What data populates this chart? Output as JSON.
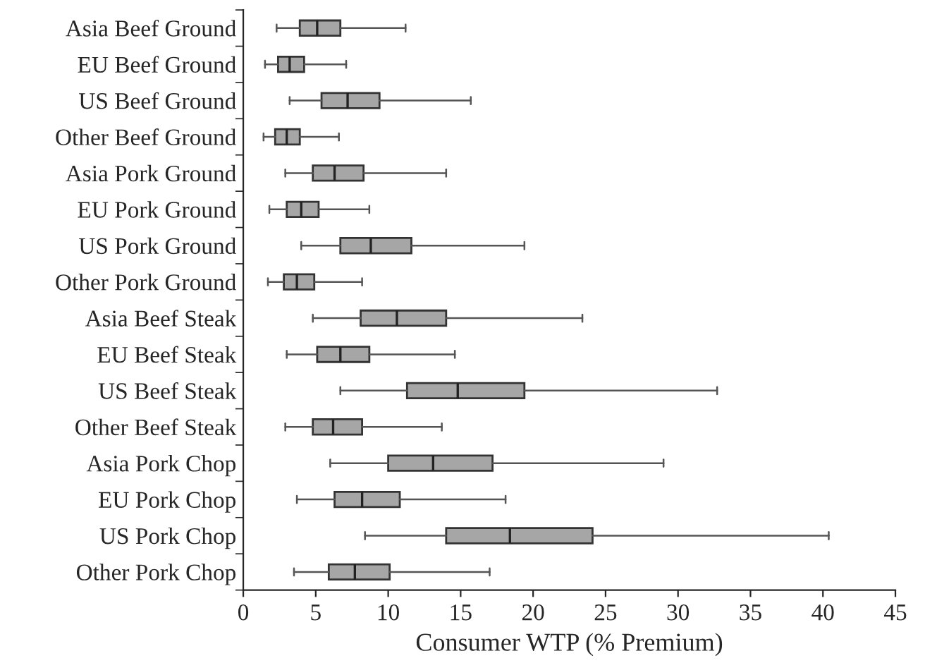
{
  "chart_data": {
    "type": "box",
    "orientation": "horizontal",
    "xlabel": "Consumer WTP (% Premium)",
    "categories": [
      "Asia Beef Ground",
      "EU Beef Ground",
      "US Beef Ground",
      "Other Beef Ground",
      "Asia Pork Ground",
      "EU Pork Ground",
      "US Pork Ground",
      "Other Pork Ground",
      "Asia Beef Steak",
      "EU Beef Steak",
      "US Beef Steak",
      "Other Beef Steak",
      "Asia Pork Chop",
      "EU Pork Chop",
      "US Pork Chop",
      "Other Pork Chop"
    ],
    "color": "#a6a6a6",
    "boxes": [
      {
        "low": 2.3,
        "q1": 3.9,
        "median": 5.1,
        "q3": 6.7,
        "high": 11.2
      },
      {
        "low": 1.5,
        "q1": 2.4,
        "median": 3.2,
        "q3": 4.2,
        "high": 7.1
      },
      {
        "low": 3.2,
        "q1": 5.4,
        "median": 7.2,
        "q3": 9.4,
        "high": 15.7
      },
      {
        "low": 1.4,
        "q1": 2.2,
        "median": 3.0,
        "q3": 3.9,
        "high": 6.6
      },
      {
        "low": 2.9,
        "q1": 4.8,
        "median": 6.3,
        "q3": 8.3,
        "high": 14.0
      },
      {
        "low": 1.8,
        "q1": 3.0,
        "median": 4.0,
        "q3": 5.2,
        "high": 8.7
      },
      {
        "low": 4.0,
        "q1": 6.7,
        "median": 8.8,
        "q3": 11.6,
        "high": 19.4
      },
      {
        "low": 1.7,
        "q1": 2.8,
        "median": 3.7,
        "q3": 4.9,
        "high": 8.2
      },
      {
        "low": 4.8,
        "q1": 8.1,
        "median": 10.6,
        "q3": 14.0,
        "high": 23.4
      },
      {
        "low": 3.0,
        "q1": 5.1,
        "median": 6.7,
        "q3": 8.7,
        "high": 14.6
      },
      {
        "low": 6.7,
        "q1": 11.3,
        "median": 14.8,
        "q3": 19.4,
        "high": 32.7
      },
      {
        "low": 2.9,
        "q1": 4.8,
        "median": 6.2,
        "q3": 8.2,
        "high": 13.7
      },
      {
        "low": 6.0,
        "q1": 10.0,
        "median": 13.1,
        "q3": 17.2,
        "high": 29.0
      },
      {
        "low": 3.7,
        "q1": 6.3,
        "median": 8.2,
        "q3": 10.8,
        "high": 18.1
      },
      {
        "low": 8.4,
        "q1": 14.0,
        "median": 18.4,
        "q3": 24.1,
        "high": 40.4
      },
      {
        "low": 3.5,
        "q1": 5.9,
        "median": 7.7,
        "q3": 10.1,
        "high": 17.0
      }
    ],
    "xlim": [
      0,
      45
    ],
    "xticks": [
      0,
      5,
      10,
      15,
      20,
      25,
      30,
      35,
      40,
      45
    ],
    "grid": false
  }
}
